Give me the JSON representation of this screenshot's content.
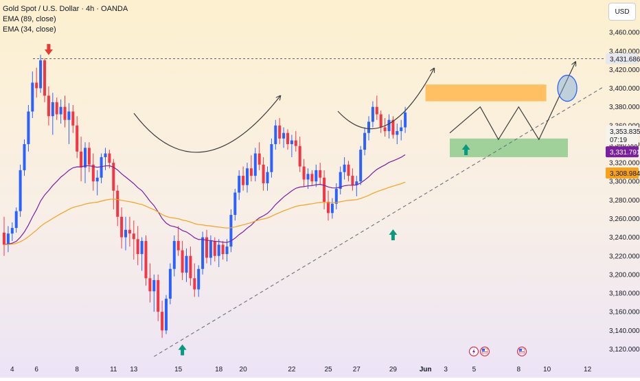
{
  "legend": {
    "title": "Gold Spot / U.S. Dollar · 4h · OANDA",
    "ema89": "EMA (89, close)",
    "ema34": "EMA (34, close)"
  },
  "currency": "USD",
  "colors": {
    "up": "#2962ff",
    "down": "#f23645",
    "ema89": "#f7a21b",
    "ema34": "#7b1fa2",
    "resistance_zone": "#ffb74d",
    "support_zone": "#81c784",
    "arrow_up": "#089981",
    "arrow_down": "#e53935"
  },
  "price_labels": {
    "high_line": "3,431.686",
    "last_price": "3,353.835",
    "countdown": "07:19",
    "ema34": "3,331.791",
    "ema89": "3,308.984"
  },
  "chart_data": {
    "type": "candlestick",
    "title": "Gold Spot / U.S. Dollar · 4h · OANDA",
    "ylim": [
      3110,
      3480
    ],
    "y_ticks": [
      "3,460.000",
      "3,440.000",
      "3,420.000",
      "3,400.000",
      "3,380.000",
      "3,360.000",
      "3,340.000",
      "3,320.000",
      "3,300.000",
      "3,280.000",
      "3,260.000",
      "3,240.000",
      "3,220.000",
      "3,200.000",
      "3,180.000",
      "3,160.000",
      "3,140.000",
      "3,120.000"
    ],
    "y_tick_values": [
      3460,
      3440,
      3420,
      3400,
      3380,
      3360,
      3340,
      3320,
      3300,
      3280,
      3260,
      3240,
      3220,
      3200,
      3180,
      3160,
      3140,
      3120
    ],
    "x_ticks": [
      "4",
      "6",
      "8",
      "11",
      "13",
      "15",
      "18",
      "20",
      "22",
      "25",
      "27",
      "29",
      "Jun",
      "3",
      "5",
      "8",
      "10",
      "12"
    ],
    "x_tick_bar_index": [
      2,
      8,
      18,
      27,
      32,
      43,
      53,
      59,
      71,
      80,
      87,
      96,
      104,
      109,
      116,
      127,
      134,
      144
    ],
    "candles": [
      [
        3245,
        3262,
        3220,
        3232
      ],
      [
        3232,
        3252,
        3224,
        3244
      ],
      [
        3244,
        3256,
        3236,
        3250
      ],
      [
        3250,
        3272,
        3245,
        3268
      ],
      [
        3268,
        3318,
        3262,
        3312
      ],
      [
        3312,
        3345,
        3306,
        3340
      ],
      [
        3340,
        3382,
        3332,
        3375
      ],
      [
        3375,
        3418,
        3368,
        3406
      ],
      [
        3406,
        3422,
        3390,
        3400
      ],
      [
        3400,
        3436,
        3395,
        3430
      ],
      [
        3430,
        3432,
        3385,
        3392
      ],
      [
        3392,
        3402,
        3360,
        3370
      ],
      [
        3370,
        3395,
        3350,
        3385
      ],
      [
        3385,
        3390,
        3366,
        3372
      ],
      [
        3372,
        3388,
        3362,
        3380
      ],
      [
        3380,
        3392,
        3358,
        3366
      ],
      [
        3366,
        3384,
        3340,
        3375
      ],
      [
        3375,
        3382,
        3352,
        3360
      ],
      [
        3360,
        3370,
        3325,
        3332
      ],
      [
        3332,
        3348,
        3300,
        3315
      ],
      [
        3315,
        3342,
        3298,
        3336
      ],
      [
        3336,
        3342,
        3310,
        3318
      ],
      [
        3318,
        3330,
        3290,
        3300
      ],
      [
        3300,
        3312,
        3285,
        3304
      ],
      [
        3304,
        3330,
        3298,
        3326
      ],
      [
        3326,
        3336,
        3312,
        3330
      ],
      [
        3330,
        3334,
        3314,
        3320
      ],
      [
        3320,
        3324,
        3270,
        3290
      ],
      [
        3290,
        3296,
        3252,
        3262
      ],
      [
        3262,
        3272,
        3228,
        3240
      ],
      [
        3240,
        3262,
        3226,
        3248
      ],
      [
        3248,
        3262,
        3230,
        3244
      ],
      [
        3244,
        3258,
        3216,
        3238
      ],
      [
        3238,
        3252,
        3210,
        3222
      ],
      [
        3222,
        3240,
        3204,
        3236
      ],
      [
        3236,
        3242,
        3188,
        3196
      ],
      [
        3196,
        3212,
        3170,
        3182
      ],
      [
        3182,
        3200,
        3160,
        3194
      ],
      [
        3194,
        3200,
        3150,
        3160
      ],
      [
        3160,
        3172,
        3132,
        3140
      ],
      [
        3140,
        3178,
        3136,
        3174
      ],
      [
        3174,
        3212,
        3168,
        3206
      ],
      [
        3206,
        3242,
        3198,
        3236
      ],
      [
        3236,
        3252,
        3220,
        3226
      ],
      [
        3226,
        3236,
        3194,
        3202
      ],
      [
        3202,
        3228,
        3192,
        3220
      ],
      [
        3220,
        3230,
        3188,
        3196
      ],
      [
        3196,
        3212,
        3176,
        3184
      ],
      [
        3184,
        3210,
        3176,
        3206
      ],
      [
        3206,
        3246,
        3200,
        3240
      ],
      [
        3240,
        3248,
        3212,
        3218
      ],
      [
        3218,
        3242,
        3210,
        3236
      ],
      [
        3236,
        3240,
        3214,
        3220
      ],
      [
        3220,
        3238,
        3208,
        3232
      ],
      [
        3232,
        3236,
        3216,
        3222
      ],
      [
        3222,
        3238,
        3214,
        3230
      ],
      [
        3230,
        3270,
        3224,
        3264
      ],
      [
        3264,
        3292,
        3258,
        3288
      ],
      [
        3288,
        3312,
        3280,
        3306
      ],
      [
        3306,
        3316,
        3290,
        3296
      ],
      [
        3296,
        3320,
        3288,
        3314
      ],
      [
        3314,
        3328,
        3300,
        3306
      ],
      [
        3306,
        3336,
        3300,
        3330
      ],
      [
        3330,
        3342,
        3312,
        3318
      ],
      [
        3318,
        3326,
        3290,
        3298
      ],
      [
        3298,
        3316,
        3290,
        3310
      ],
      [
        3310,
        3346,
        3304,
        3340
      ],
      [
        3340,
        3366,
        3334,
        3360
      ],
      [
        3360,
        3368,
        3340,
        3346
      ],
      [
        3346,
        3358,
        3336,
        3352
      ],
      [
        3352,
        3356,
        3334,
        3340
      ],
      [
        3340,
        3350,
        3326,
        3344
      ],
      [
        3344,
        3354,
        3332,
        3338
      ],
      [
        3338,
        3348,
        3310,
        3316
      ],
      [
        3316,
        3324,
        3294,
        3302
      ],
      [
        3302,
        3314,
        3292,
        3308
      ],
      [
        3308,
        3312,
        3296,
        3300
      ],
      [
        3300,
        3318,
        3294,
        3312
      ],
      [
        3312,
        3320,
        3296,
        3304
      ],
      [
        3304,
        3312,
        3270,
        3278
      ],
      [
        3278,
        3290,
        3258,
        3266
      ],
      [
        3266,
        3282,
        3260,
        3276
      ],
      [
        3276,
        3298,
        3270,
        3292
      ],
      [
        3292,
        3316,
        3286,
        3310
      ],
      [
        3310,
        3326,
        3302,
        3318
      ],
      [
        3318,
        3322,
        3300,
        3306
      ],
      [
        3306,
        3314,
        3290,
        3296
      ],
      [
        3296,
        3306,
        3284,
        3300
      ],
      [
        3300,
        3338,
        3296,
        3334
      ],
      [
        3334,
        3358,
        3328,
        3352
      ],
      [
        3352,
        3370,
        3344,
        3364
      ],
      [
        3364,
        3386,
        3358,
        3380
      ],
      [
        3380,
        3392,
        3366,
        3372
      ],
      [
        3372,
        3376,
        3352,
        3358
      ],
      [
        3358,
        3368,
        3348,
        3354
      ],
      [
        3354,
        3372,
        3346,
        3366
      ],
      [
        3366,
        3370,
        3346,
        3350
      ],
      [
        3350,
        3362,
        3340,
        3354
      ],
      [
        3354,
        3366,
        3344,
        3358
      ],
      [
        3358,
        3380,
        3352,
        3374
      ]
    ]
  },
  "annotations": {
    "resistance_zone": [
      3386,
      3404
    ],
    "support_zone": [
      3326,
      3346
    ],
    "high_line_price": 3431.686
  },
  "events": [
    "event-flash-icon",
    "us-flag-icon",
    "us-flag-icon"
  ]
}
